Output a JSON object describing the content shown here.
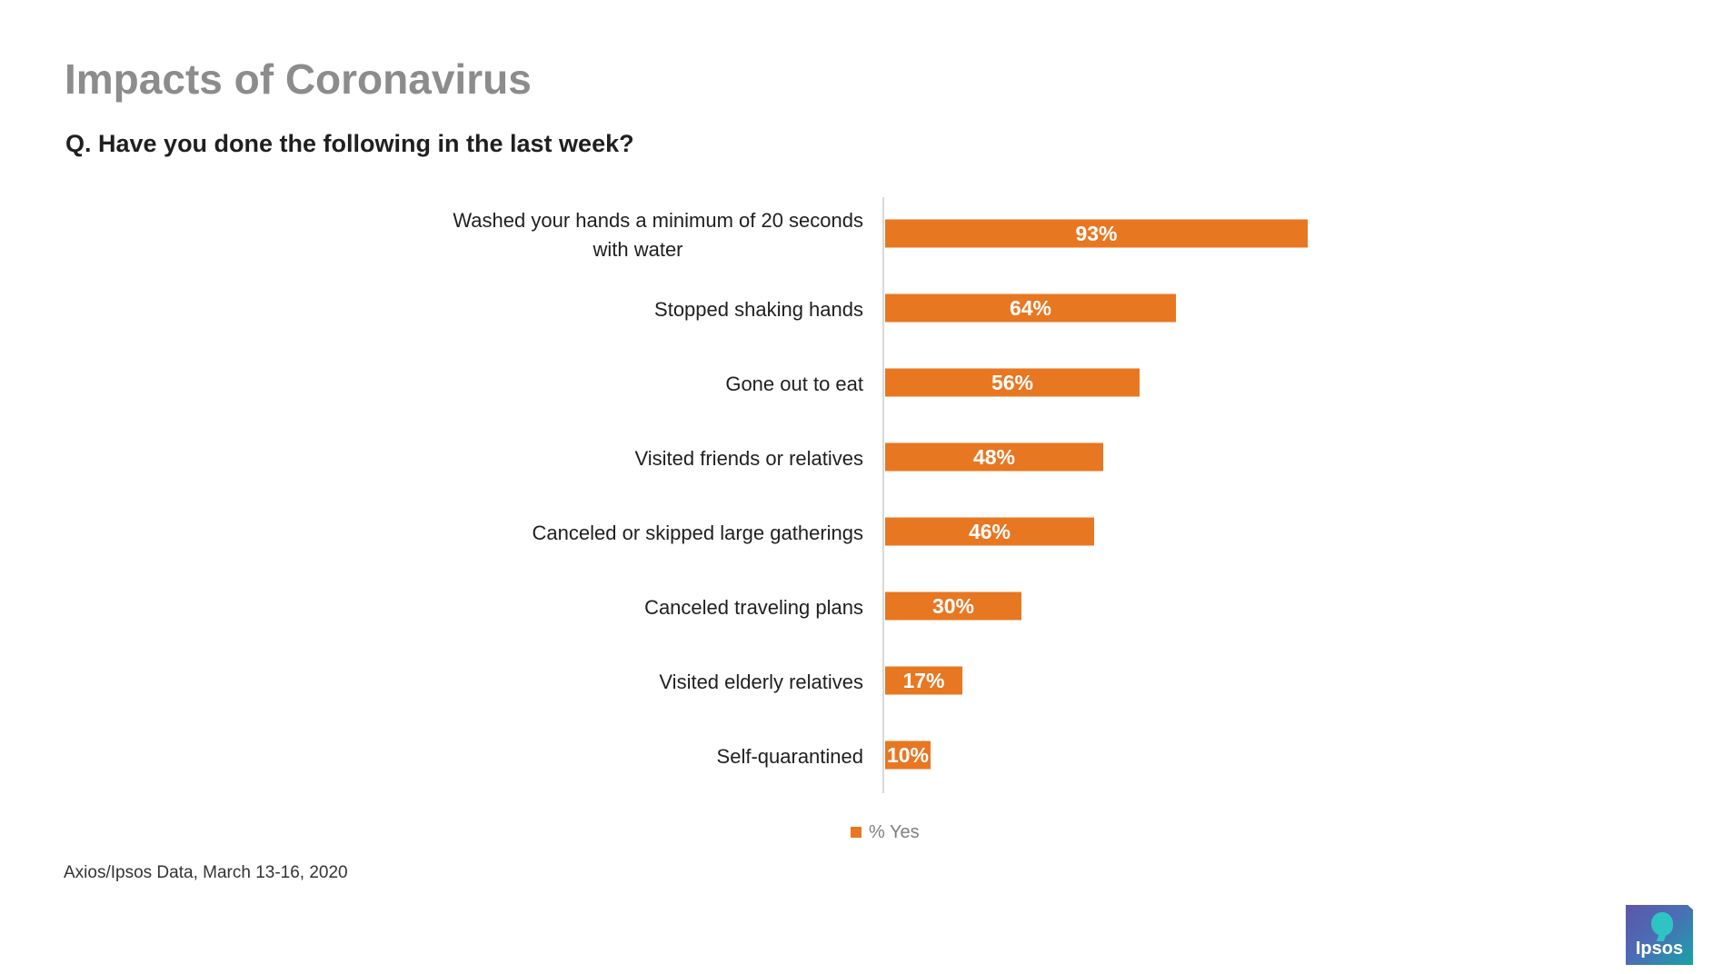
{
  "title": "Impacts of Coronavirus",
  "subtitle": "Q. Have you done the following in the last week?",
  "footnote": "Axios/Ipsos Data, March 13-16, 2020",
  "logo": {
    "text": "Ipsos",
    "icon": "ipsos-logo-icon"
  },
  "colors": {
    "bar": "#e87722",
    "axis": "#d9d9d9",
    "label": "#1f1f1f",
    "legend_text": "#7f7f7f"
  },
  "chart_data": {
    "type": "bar",
    "orientation": "horizontal",
    "title": "Q. Have you done the following in the last week?",
    "categories": [
      [
        "Washed your hands a minimum of 20 seconds",
        "with water"
      ],
      [
        "Stopped shaking hands"
      ],
      [
        "Gone out to eat"
      ],
      [
        "Visited friends or relatives"
      ],
      [
        "Canceled or skipped large gatherings"
      ],
      [
        "Canceled traveling plans"
      ],
      [
        "Visited elderly relatives"
      ],
      [
        "Self-quarantined"
      ]
    ],
    "series": [
      {
        "name": "% Yes",
        "values": [
          93,
          64,
          56,
          48,
          46,
          30,
          17,
          10
        ]
      }
    ],
    "data_labels": [
      "93%",
      "64%",
      "56%",
      "48%",
      "46%",
      "30%",
      "17%",
      "10%"
    ],
    "xlim": [
      0,
      100
    ],
    "grid": false,
    "legend": "bottom-center"
  }
}
